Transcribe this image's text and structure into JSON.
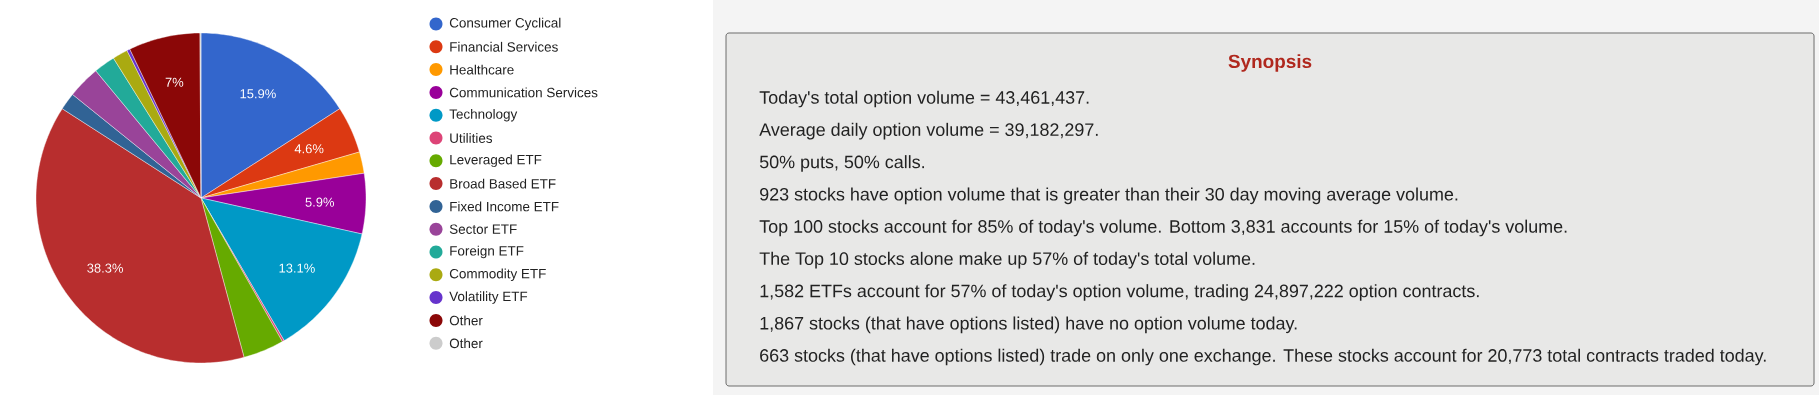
{
  "chart_data": [
    {
      "type": "pie",
      "legend": "right",
      "categories": [
        "Consumer Cyclical",
        "Financial Services",
        "Healthcare",
        "Communication Services",
        "Technology",
        "Utilities",
        "Leveraged ETF",
        "Broad Based ETF",
        "Fixed Income ETF",
        "Sector ETF",
        "Foreign ETF",
        "Commodity ETF",
        "Volatility ETF",
        "Other",
        "Other"
      ],
      "values": [
        15.9,
        4.6,
        2.1,
        5.9,
        13.1,
        0.2,
        4.0,
        38.3,
        1.7,
        3.2,
        2.1,
        1.5,
        0.3,
        7,
        0.1
      ],
      "value_labels": [
        "15.9%",
        "4.6%",
        null,
        "5.9%",
        "13.1%",
        null,
        null,
        "38.3%",
        null,
        null,
        null,
        null,
        null,
        "7%",
        null
      ],
      "colors": [
        "#3366cc",
        "#dc3912",
        "#ff9900",
        "#990099",
        "#0099c6",
        "#dd4477",
        "#66aa00",
        "#b82e2e",
        "#316395",
        "#994499",
        "#22aa99",
        "#aaaa11",
        "#6633cc",
        "#8b0707",
        "#cccccc"
      ]
    },
    {
      "type": "other",
      "title": "Synopsis",
      "annotations": [
        "Today's total option volume = 43,461,437.",
        "Average daily option volume = 39,182,297.",
        "50% puts, 50% calls.",
        "923 stocks have option volume that is greater than their 30 day moving average volume.",
        "Top 100 stocks account for 85% of today's volume. Bottom 3,831 accounts for 15% of today's volume.",
        "The Top 10 stocks alone make up 57% of today's total volume.",
        "1,582 ETFs account for 57% of today's option volume, trading 24,897,222 option contracts.",
        "1,867 stocks (that have options listed) have no option volume today.",
        "663 stocks (that have options listed) trade on only one exchange. These stocks account for 20,773 total contracts traded today."
      ]
    }
  ]
}
